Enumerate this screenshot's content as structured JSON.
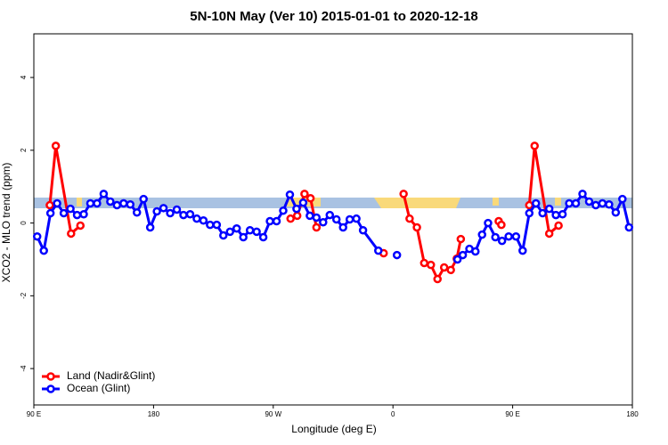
{
  "chart_data": {
    "type": "line",
    "title": "5N-10N May (Ver 10)   2015-01-01 to 2020-12-18",
    "xlabel": "Longitude (deg E)",
    "ylabel": "XCO2 - MLO trend (ppm)",
    "xlim": [
      90,
      540
    ],
    "xticks": [
      {
        "value": 90,
        "label": "90 E"
      },
      180,
      {
        "value": 270,
        "label": "90 W"
      },
      {
        "value": 360,
        "label": "0"
      },
      {
        "value": 450,
        "label": "90 E"
      },
      {
        "value": 540,
        "label": "180"
      }
    ],
    "ylim": [
      -5,
      5.2
    ],
    "yticks": [
      -4,
      -2,
      0,
      2,
      4
    ],
    "legend": "bottomleft",
    "series": [
      {
        "name": "Land (Nadir&Glint)",
        "color": "#ff0000",
        "x": [
          102,
          106.5,
          118,
          125,
          200,
          283,
          288,
          293.5,
          298,
          302.5,
          330,
          353,
          360,
          368,
          372.5,
          378,
          383.5,
          388.5,
          393.5,
          398.5,
          403.5,
          408,
          411,
          425,
          439.5,
          441.5,
          450,
          462.5,
          466.5,
          477.5,
          484.5
        ],
        "values": [
          0.49,
          2.12,
          -0.29,
          -0.07,
          null,
          0.12,
          0.2,
          0.8,
          0.68,
          -0.12,
          null,
          -0.83,
          null,
          0.8,
          0.12,
          -0.12,
          -1.1,
          -1.15,
          -1.54,
          -1.22,
          -1.29,
          -0.98,
          -0.44,
          null,
          0.05,
          -0.05,
          null,
          0.49,
          2.12,
          -0.29,
          -0.07
        ]
      },
      {
        "name": "Ocean (Glint)",
        "color": "#0000ff",
        "x": [
          92.5,
          97.5,
          102.5,
          107.5,
          112.5,
          117.5,
          122.5,
          127.5,
          132.5,
          137.5,
          142.5,
          147.5,
          152.5,
          157.5,
          162.5,
          167.5,
          172.5,
          177.5,
          182.5,
          187.5,
          192.5,
          197.5,
          202.5,
          207.5,
          212.5,
          217.5,
          222.5,
          227.5,
          232.5,
          237.5,
          242.5,
          247.5,
          252.5,
          257.5,
          262.5,
          267.5,
          272.5,
          277.5,
          282.5,
          287.5,
          292.5,
          297.5,
          302.5,
          307.5,
          312.5,
          317.5,
          322.5,
          327.5,
          332.5,
          337.5,
          349,
          356,
          363,
          385,
          408.5,
          412.5,
          417.5,
          422,
          427,
          431.5,
          437,
          442,
          447,
          452.5,
          457.5,
          462.5,
          467.5,
          472.5,
          477.5,
          482.5,
          487.5,
          492.5,
          497.5,
          502.5,
          507.5,
          512.5,
          517.5,
          522.5,
          527.5,
          532.5,
          537.5
        ],
        "values": [
          -0.37,
          -0.76,
          0.27,
          0.54,
          0.27,
          0.39,
          0.22,
          0.24,
          0.54,
          0.54,
          0.8,
          0.59,
          0.49,
          0.54,
          0.51,
          0.29,
          0.66,
          -0.12,
          0.32,
          0.41,
          0.27,
          0.37,
          0.22,
          0.24,
          0.12,
          0.07,
          -0.05,
          -0.05,
          -0.34,
          -0.24,
          -0.15,
          -0.39,
          -0.2,
          -0.24,
          -0.39,
          0.05,
          0.05,
          0.34,
          0.78,
          0.39,
          0.56,
          0.2,
          0.15,
          0.02,
          0.22,
          0.1,
          -0.12,
          0.1,
          0.12,
          -0.2,
          -0.76,
          null,
          -0.88,
          null,
          -1.0,
          -0.88,
          -0.71,
          -0.78,
          -0.32,
          0,
          -0.39,
          -0.49,
          -0.37,
          -0.37,
          -0.76,
          0.27,
          0.54,
          0.27,
          0.39,
          0.22,
          0.24,
          0.54,
          0.54,
          0.8,
          0.59,
          0.49,
          0.54,
          0.51,
          0.29,
          0.66,
          -0.12
        ]
      }
    ]
  }
}
